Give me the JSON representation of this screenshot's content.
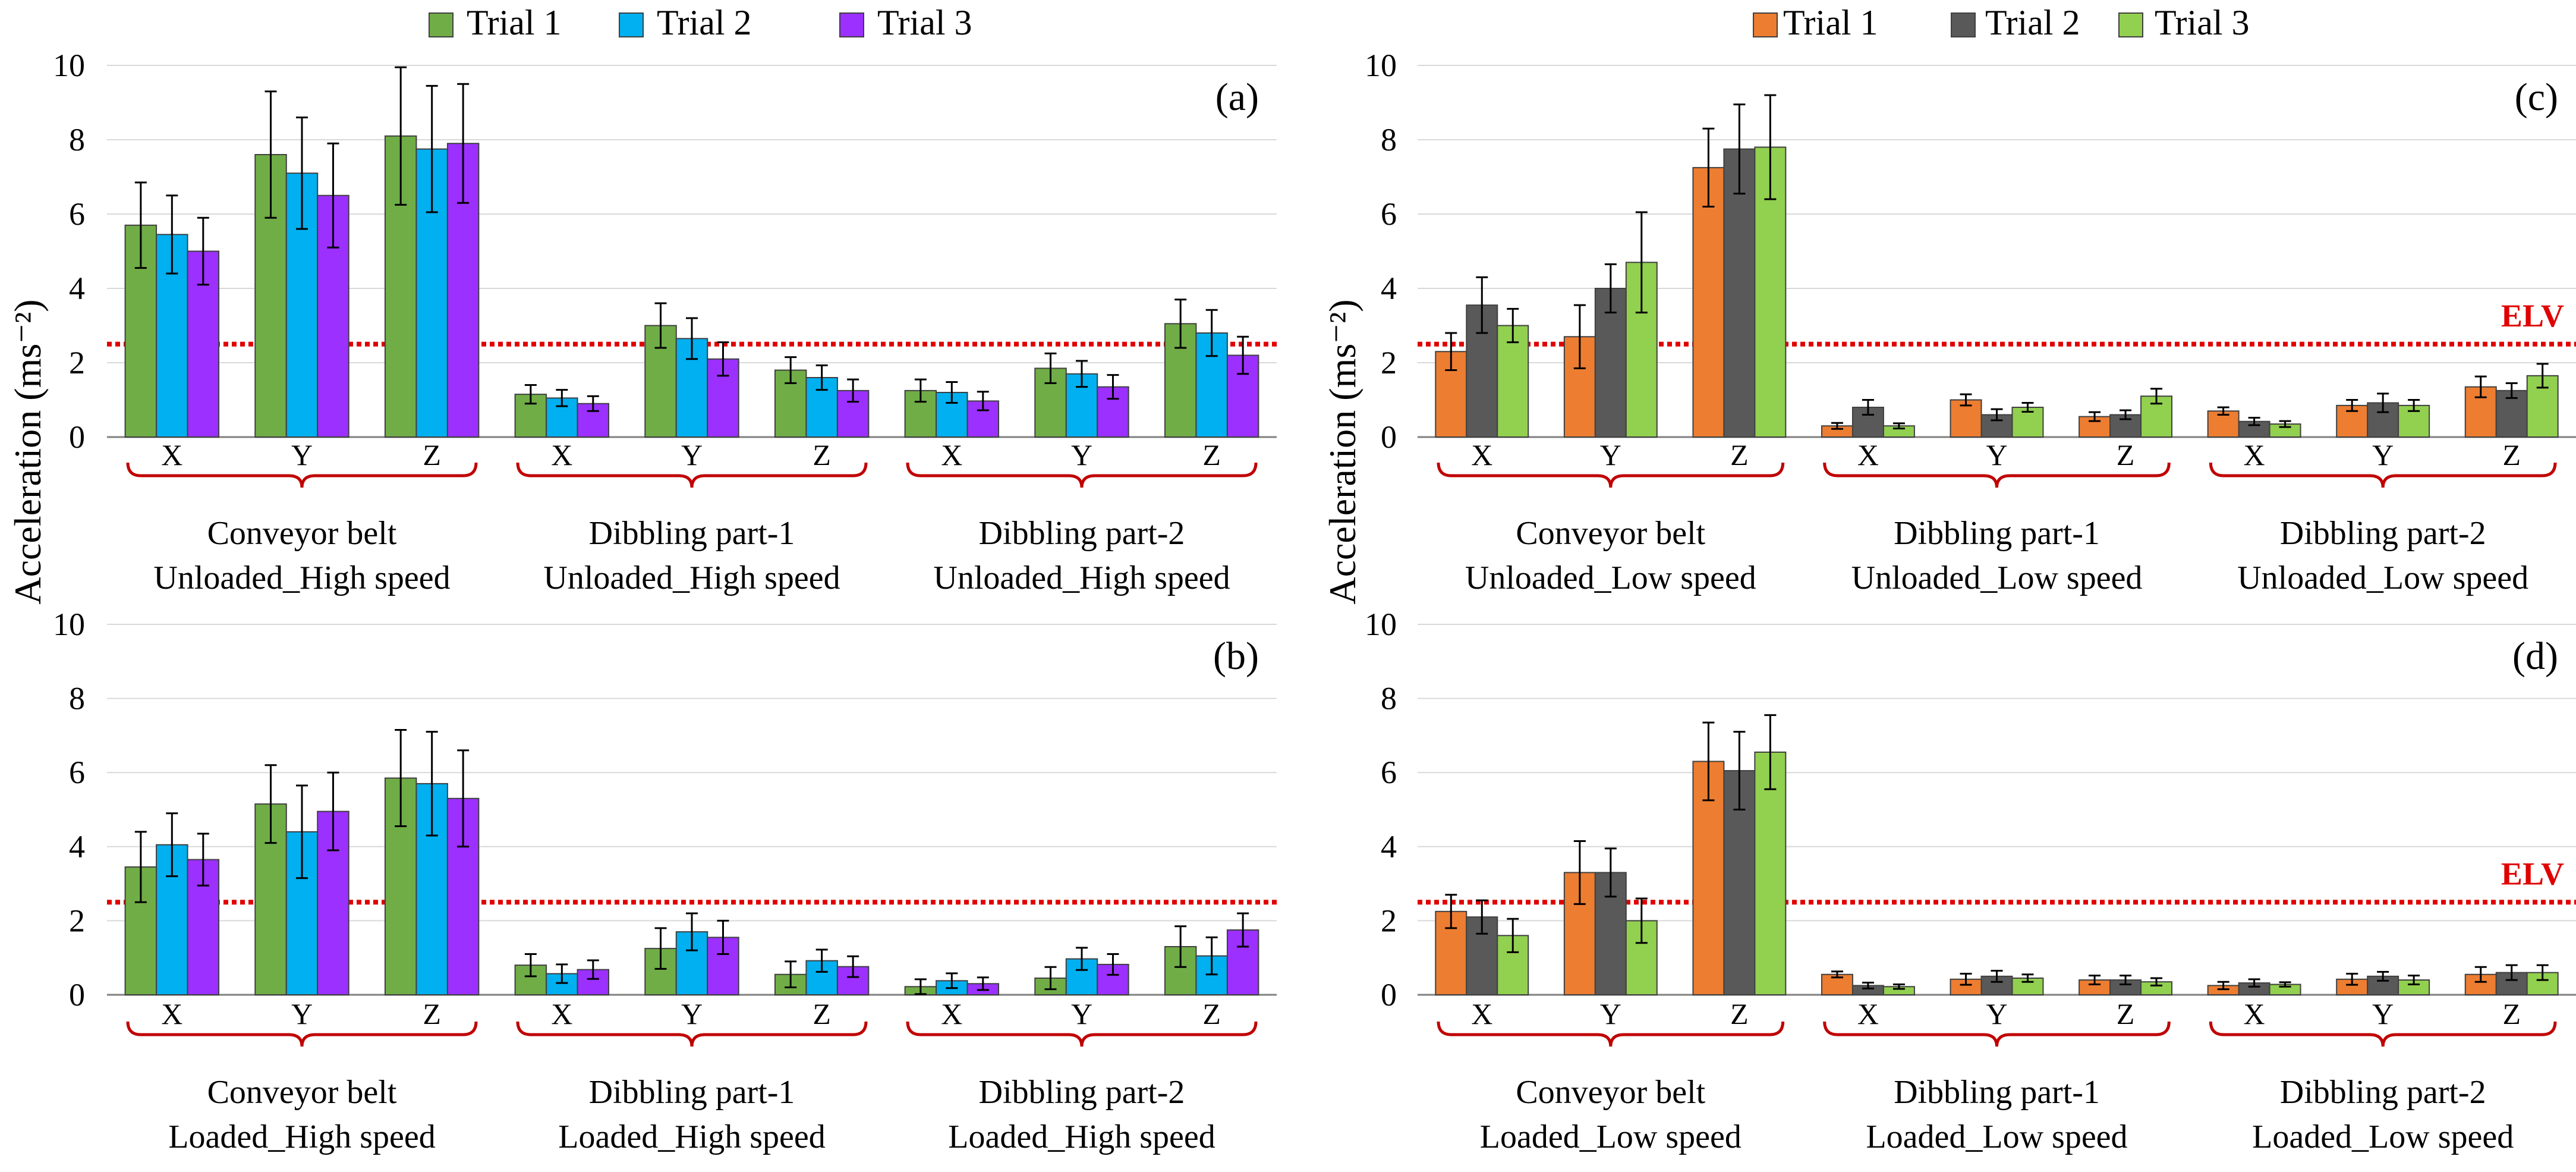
{
  "legend_left": [
    "Trial 1",
    "Trial 2",
    "Trial 3"
  ],
  "legend_right": [
    "Trial 1",
    "Trial 2",
    "Trial 3"
  ],
  "ylabel": "Acceleration (ms⁻²)",
  "elv_label": "ELV",
  "colors": {
    "left": [
      "#70ad47",
      "#00b0f0",
      "#9b30ff"
    ],
    "right": [
      "#ed7d31",
      "#595959",
      "#92d050"
    ],
    "elv": "#e00000",
    "brace": "#c00000"
  },
  "chart_data": [
    {
      "panel": "(a)",
      "type": "bar",
      "ylim": [
        0,
        10
      ],
      "yticks": [
        0,
        2,
        4,
        6,
        8,
        10
      ],
      "elv": 2.5,
      "show_elv_label": false,
      "axes": [
        "X",
        "Y",
        "Z"
      ],
      "groups": [
        "Conveyor belt\nUnloaded_High speed",
        "Dibbling part-1\nUnloaded_High speed",
        "Dibbling part-2\nUnloaded_High speed"
      ],
      "series": [
        {
          "name": "Trial 1",
          "values": [
            5.7,
            7.6,
            8.1,
            1.15,
            3.0,
            1.8,
            1.25,
            1.85,
            3.05
          ],
          "errors": [
            1.15,
            1.7,
            1.85,
            0.25,
            0.6,
            0.35,
            0.3,
            0.4,
            0.65
          ]
        },
        {
          "name": "Trial 2",
          "values": [
            5.45,
            7.1,
            7.75,
            1.05,
            2.65,
            1.6,
            1.2,
            1.7,
            2.8
          ],
          "errors": [
            1.05,
            1.5,
            1.7,
            0.22,
            0.55,
            0.33,
            0.28,
            0.35,
            0.62
          ]
        },
        {
          "name": "Trial 3",
          "values": [
            5.0,
            6.5,
            7.9,
            0.9,
            2.1,
            1.25,
            0.97,
            1.35,
            2.2
          ],
          "errors": [
            0.9,
            1.4,
            1.6,
            0.2,
            0.45,
            0.3,
            0.25,
            0.32,
            0.5
          ]
        }
      ]
    },
    {
      "panel": "(b)",
      "type": "bar",
      "ylim": [
        0,
        10
      ],
      "yticks": [
        0,
        2,
        4,
        6,
        8,
        10
      ],
      "elv": 2.5,
      "show_elv_label": false,
      "axes": [
        "X",
        "Y",
        "Z"
      ],
      "groups": [
        "Conveyor belt\nLoaded_High speed",
        "Dibbling part-1\nLoaded_High speed",
        "Dibbling part-2\nLoaded_High speed"
      ],
      "series": [
        {
          "name": "Trial 1",
          "values": [
            3.45,
            5.15,
            5.85,
            0.8,
            1.25,
            0.55,
            0.22,
            0.45,
            1.3
          ],
          "errors": [
            0.95,
            1.05,
            1.3,
            0.3,
            0.55,
            0.35,
            0.2,
            0.3,
            0.55
          ]
        },
        {
          "name": "Trial 2",
          "values": [
            4.05,
            4.4,
            5.7,
            0.57,
            1.7,
            0.92,
            0.38,
            0.97,
            1.05
          ],
          "errors": [
            0.85,
            1.25,
            1.4,
            0.25,
            0.5,
            0.3,
            0.2,
            0.3,
            0.5
          ]
        },
        {
          "name": "Trial 3",
          "values": [
            3.65,
            4.95,
            5.3,
            0.68,
            1.55,
            0.76,
            0.3,
            0.82,
            1.75
          ],
          "errors": [
            0.7,
            1.05,
            1.3,
            0.25,
            0.45,
            0.28,
            0.17,
            0.28,
            0.45
          ]
        }
      ]
    },
    {
      "panel": "(c)",
      "type": "bar",
      "ylim": [
        0,
        10
      ],
      "yticks": [
        0,
        2,
        4,
        6,
        8,
        10
      ],
      "elv": 2.5,
      "show_elv_label": true,
      "axes": [
        "X",
        "Y",
        "Z"
      ],
      "groups": [
        "Conveyor belt\nUnloaded_Low speed",
        "Dibbling part-1\nUnloaded_Low speed",
        "Dibbling part-2\nUnloaded_Low speed"
      ],
      "series": [
        {
          "name": "Trial 1",
          "values": [
            2.3,
            2.7,
            7.25,
            0.3,
            1.0,
            0.55,
            0.7,
            0.85,
            1.35
          ],
          "errors": [
            0.5,
            0.85,
            1.05,
            0.08,
            0.15,
            0.12,
            0.1,
            0.15,
            0.28
          ]
        },
        {
          "name": "Trial 2",
          "values": [
            3.55,
            4.0,
            7.75,
            0.8,
            0.6,
            0.6,
            0.42,
            0.92,
            1.25
          ],
          "errors": [
            0.75,
            0.65,
            1.2,
            0.2,
            0.15,
            0.12,
            0.1,
            0.25,
            0.2
          ]
        },
        {
          "name": "Trial 3",
          "values": [
            3.0,
            4.7,
            7.8,
            0.3,
            0.8,
            1.1,
            0.35,
            0.85,
            1.65
          ],
          "errors": [
            0.45,
            1.35,
            1.4,
            0.07,
            0.12,
            0.2,
            0.08,
            0.15,
            0.32
          ]
        }
      ]
    },
    {
      "panel": "(d)",
      "type": "bar",
      "ylim": [
        0,
        10
      ],
      "yticks": [
        0,
        2,
        4,
        6,
        8,
        10
      ],
      "elv": 2.5,
      "show_elv_label": true,
      "axes": [
        "X",
        "Y",
        "Z"
      ],
      "groups": [
        "Conveyor belt\nLoaded_Low speed",
        "Dibbling part-1\nLoaded_Low speed",
        "Dibbling part-2\nLoaded_Low speed"
      ],
      "series": [
        {
          "name": "Trial 1",
          "values": [
            2.25,
            3.3,
            6.3,
            0.55,
            0.42,
            0.4,
            0.25,
            0.42,
            0.55
          ],
          "errors": [
            0.45,
            0.85,
            1.05,
            0.08,
            0.15,
            0.12,
            0.1,
            0.15,
            0.2
          ]
        },
        {
          "name": "Trial 2",
          "values": [
            2.1,
            3.3,
            6.05,
            0.25,
            0.5,
            0.4,
            0.32,
            0.5,
            0.6
          ],
          "errors": [
            0.45,
            0.65,
            1.05,
            0.08,
            0.15,
            0.12,
            0.1,
            0.12,
            0.2
          ]
        },
        {
          "name": "Trial 3",
          "values": [
            1.6,
            2.0,
            6.55,
            0.22,
            0.45,
            0.35,
            0.28,
            0.4,
            0.6
          ],
          "errors": [
            0.45,
            0.6,
            1.0,
            0.06,
            0.1,
            0.1,
            0.06,
            0.12,
            0.2
          ]
        }
      ]
    }
  ]
}
